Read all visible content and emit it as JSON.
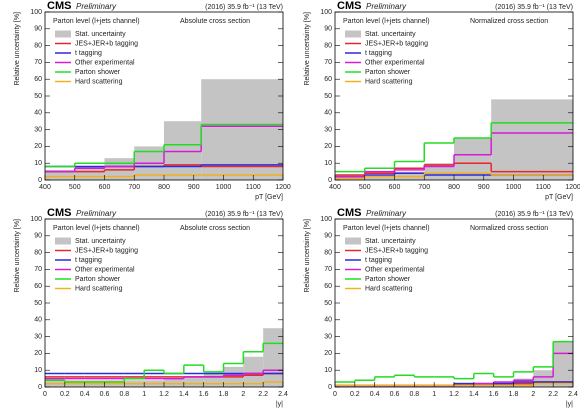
{
  "chart_data": [
    {
      "type": "histogram",
      "title": "CMS",
      "subtitle": "Preliminary",
      "lumi": "(2016) 35.9 fb⁻¹ (13 TeV)",
      "channel": "Parton level (l+jets channel)",
      "annotation": "Absolute cross section",
      "xlabel": "pT [GeV]",
      "ylabel": "Relative uncertainty [%]",
      "bins": [
        400,
        500,
        600,
        700,
        800,
        925,
        1200
      ],
      "xlim": [
        400,
        1200
      ],
      "ylim": [
        0,
        100
      ],
      "xticks": [
        400,
        500,
        600,
        700,
        800,
        900,
        1000,
        1100,
        1200
      ],
      "yticks": [
        0,
        10,
        20,
        30,
        40,
        50,
        60,
        70,
        80,
        90,
        100
      ],
      "series": [
        {
          "name": "Stat. uncertainty",
          "color": "#c4c4c4",
          "values": [
            6,
            8,
            13,
            20,
            35,
            60
          ]
        },
        {
          "name": "JES+JER+b tagging",
          "color": "#e8262b",
          "values": [
            5,
            5,
            6,
            8,
            9,
            8
          ]
        },
        {
          "name": "t tagging",
          "color": "#2b2bde",
          "values": [
            8,
            8,
            8,
            8,
            8,
            9
          ]
        },
        {
          "name": "Other experimental",
          "color": "#d41dd4",
          "values": [
            5,
            7,
            8,
            10,
            17,
            32
          ]
        },
        {
          "name": "Parton shower",
          "color": "#22dd22",
          "values": [
            8,
            10,
            10,
            17,
            21,
            33
          ]
        },
        {
          "name": "Hard scattering",
          "color": "#f0b020",
          "values": [
            2,
            2,
            2,
            3,
            3,
            3
          ]
        }
      ]
    },
    {
      "type": "histogram",
      "title": "CMS",
      "subtitle": "Preliminary",
      "lumi": "(2016) 35.9 fb⁻¹ (13 TeV)",
      "channel": "Parton level (l+jets channel)",
      "annotation": "Normalized cross section",
      "xlabel": "pT [GeV]",
      "ylabel": "Relative uncertainty [%]",
      "bins": [
        400,
        500,
        600,
        700,
        800,
        925,
        1200
      ],
      "xlim": [
        400,
        1200
      ],
      "ylim": [
        0,
        100
      ],
      "xticks": [
        400,
        500,
        600,
        700,
        800,
        900,
        1000,
        1100,
        1200
      ],
      "yticks": [
        0,
        10,
        20,
        30,
        40,
        50,
        60,
        70,
        80,
        90,
        100
      ],
      "series": [
        {
          "name": "Stat. uncertainty",
          "color": "#c4c4c4",
          "values": [
            2,
            3,
            5,
            10,
            25,
            48
          ]
        },
        {
          "name": "JES+JER+b tagging",
          "color": "#e8262b",
          "values": [
            3,
            4,
            7,
            9,
            10,
            5
          ]
        },
        {
          "name": "t tagging",
          "color": "#2b2bde",
          "values": [
            2,
            3,
            4,
            3,
            3,
            3
          ]
        },
        {
          "name": "Other experimental",
          "color": "#d41dd4",
          "values": [
            2,
            5,
            6,
            8,
            15,
            28
          ]
        },
        {
          "name": "Parton shower",
          "color": "#22dd22",
          "values": [
            5,
            7,
            11,
            22,
            25,
            34
          ]
        },
        {
          "name": "Hard scattering",
          "color": "#f0b020",
          "values": [
            1,
            2,
            2,
            4,
            4,
            3
          ]
        }
      ]
    },
    {
      "type": "histogram",
      "title": "CMS",
      "subtitle": "Preliminary",
      "lumi": "(2016) 35.9 fb⁻¹ (13 TeV)",
      "channel": "Parton level (l+jets channel)",
      "annotation": "Absolute cross section",
      "xlabel": "|y|",
      "ylabel": "Relative uncertainty [%]",
      "bins": [
        0,
        0.2,
        0.4,
        0.6,
        0.8,
        1,
        1.2,
        1.4,
        1.6,
        1.8,
        2,
        2.2,
        2.4
      ],
      "xlim": [
        0,
        2.4
      ],
      "ylim": [
        0,
        100
      ],
      "xticks": [
        0,
        0.2,
        0.4,
        0.6,
        0.8,
        1,
        1.2,
        1.4,
        1.6,
        1.8,
        2,
        2.2,
        2.4
      ],
      "yticks": [
        0,
        10,
        20,
        30,
        40,
        50,
        60,
        70,
        80,
        90,
        100
      ],
      "series": [
        {
          "name": "Stat. uncertainty",
          "color": "#c4c4c4",
          "values": [
            4,
            4,
            4,
            4,
            4,
            4,
            5,
            6,
            8,
            12,
            18,
            35
          ]
        },
        {
          "name": "JES+JER+b tagging",
          "color": "#e8262b",
          "values": [
            6,
            6,
            6,
            6,
            6,
            6,
            6,
            6,
            6,
            6,
            7,
            8
          ]
        },
        {
          "name": "t tagging",
          "color": "#2b2bde",
          "values": [
            8,
            8,
            8,
            8,
            8,
            8,
            8,
            8,
            8,
            8,
            8,
            8
          ]
        },
        {
          "name": "Other experimental",
          "color": "#d41dd4",
          "values": [
            5,
            5,
            5,
            5,
            5,
            5,
            5,
            6,
            6,
            7,
            8,
            10
          ]
        },
        {
          "name": "Parton shower",
          "color": "#22dd22",
          "values": [
            4,
            3,
            3,
            3,
            5,
            10,
            8,
            13,
            9,
            14,
            21,
            26
          ]
        },
        {
          "name": "Hard scattering",
          "color": "#f0b020",
          "values": [
            2,
            2,
            2,
            2,
            2,
            2,
            2,
            2,
            2,
            2,
            2,
            3
          ]
        }
      ]
    },
    {
      "type": "histogram",
      "title": "CMS",
      "subtitle": "Preliminary",
      "lumi": "(2016) 35.9 fb⁻¹ (13 TeV)",
      "channel": "Parton level (l+jets channel)",
      "annotation": "Normalized cross section",
      "xlabel": "|y|",
      "ylabel": "Relative uncertainty [%]",
      "bins": [
        0,
        0.2,
        0.4,
        0.6,
        0.8,
        1,
        1.2,
        1.4,
        1.6,
        1.8,
        2,
        2.2,
        2.4
      ],
      "xlim": [
        0,
        2.4
      ],
      "ylim": [
        0,
        100
      ],
      "xticks": [
        0,
        0.2,
        0.4,
        0.6,
        0.8,
        1,
        1.2,
        1.4,
        1.6,
        1.8,
        2,
        2.2,
        2.4
      ],
      "yticks": [
        0,
        10,
        20,
        30,
        40,
        50,
        60,
        70,
        80,
        90,
        100
      ],
      "series": [
        {
          "name": "Stat. uncertainty",
          "color": "#c4c4c4",
          "values": [
            1,
            1,
            1,
            1,
            1,
            1,
            1,
            2,
            3,
            5,
            10,
            27
          ]
        },
        {
          "name": "JES+JER+b tagging",
          "color": "#e8262b",
          "values": [
            1,
            1,
            1,
            1,
            1,
            1,
            2,
            2,
            2,
            2,
            3,
            3
          ]
        },
        {
          "name": "t tagging",
          "color": "#2b2bde",
          "values": [
            1,
            1,
            1,
            1,
            1,
            1,
            2,
            2,
            2,
            3,
            3,
            3
          ]
        },
        {
          "name": "Other experimental",
          "color": "#d41dd4",
          "values": [
            1,
            1,
            1,
            1,
            1,
            1,
            1,
            2,
            3,
            4,
            6,
            20
          ]
        },
        {
          "name": "Parton shower",
          "color": "#22dd22",
          "values": [
            3,
            4,
            6,
            7,
            6,
            6,
            5,
            8,
            6,
            9,
            12,
            27
          ]
        },
        {
          "name": "Hard scattering",
          "color": "#f0b020",
          "values": [
            1,
            1,
            1,
            1,
            1,
            1,
            1,
            1,
            1,
            1,
            2,
            2
          ]
        }
      ]
    }
  ]
}
